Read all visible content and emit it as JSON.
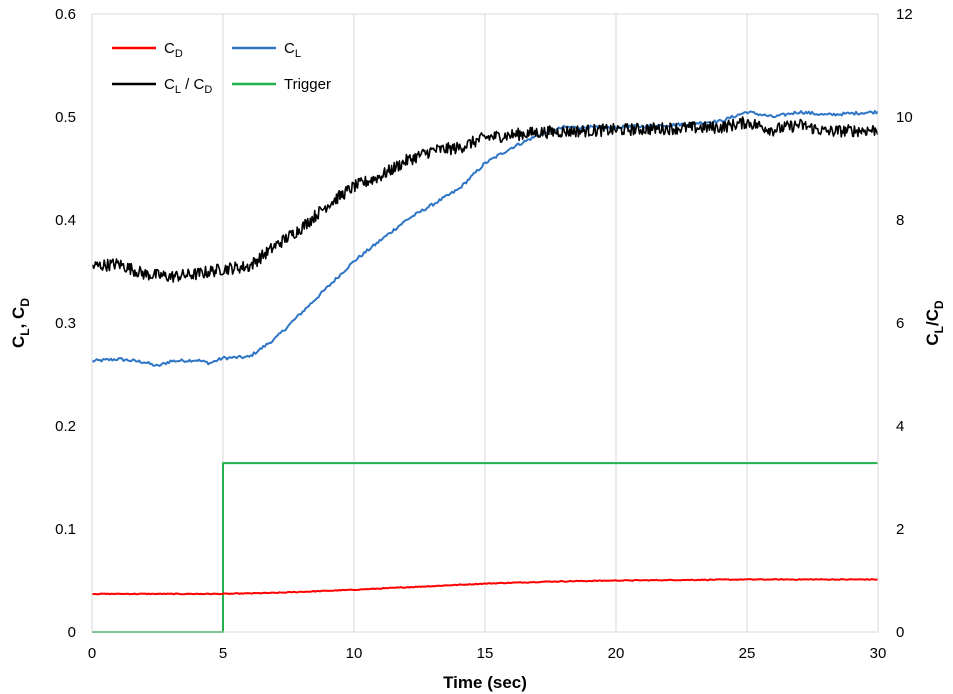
{
  "chart_data": {
    "type": "line",
    "xlabel": "Time (sec)",
    "ylabel_left": {
      "main": "C",
      "sub1": "L",
      "sep": ", C",
      "sub2": "D"
    },
    "ylabel_right": {
      "main": "C",
      "sub1": "L",
      "sep": "/C",
      "sub2": "D"
    },
    "xlim": [
      0,
      30
    ],
    "ylim_left": [
      0,
      0.6
    ],
    "ylim_right": [
      0,
      12
    ],
    "x_ticks": [
      "0",
      "5",
      "10",
      "15",
      "20",
      "25",
      "30"
    ],
    "y_left_ticks": [
      "0",
      "0.1",
      "0.2",
      "0.3",
      "0.4",
      "0.5",
      "0.6"
    ],
    "y_right_ticks": [
      "0",
      "2",
      "4",
      "6",
      "8",
      "10",
      "12"
    ],
    "grid": "vertical",
    "legend_position": "top-left",
    "series": [
      {
        "name": "CD",
        "label_main": "C",
        "label_sub": "D",
        "label_suffix": "",
        "color": "#ff0000",
        "axis": "left",
        "noise": 0.0004,
        "x": [
          0,
          5,
          7,
          10,
          12.5,
          15,
          17.5,
          20,
          25,
          30
        ],
        "values": [
          0.037,
          0.037,
          0.038,
          0.041,
          0.044,
          0.047,
          0.049,
          0.05,
          0.051,
          0.051
        ]
      },
      {
        "name": "CL",
        "label_main": "C",
        "label_sub": "L",
        "label_suffix": "",
        "color": "#2e75c6",
        "axis": "left",
        "noise": 0.0015,
        "x": [
          0,
          1,
          2,
          2.5,
          3,
          4,
          4.5,
          5,
          6,
          7,
          8,
          9,
          10,
          11,
          12,
          13,
          14,
          15,
          16,
          17,
          18,
          20,
          22,
          24,
          25,
          26,
          27,
          28,
          30
        ],
        "values": [
          0.263,
          0.265,
          0.262,
          0.258,
          0.263,
          0.264,
          0.261,
          0.266,
          0.267,
          0.285,
          0.31,
          0.335,
          0.36,
          0.38,
          0.4,
          0.415,
          0.43,
          0.455,
          0.47,
          0.482,
          0.49,
          0.49,
          0.492,
          0.496,
          0.505,
          0.5,
          0.505,
          0.502,
          0.505
        ]
      },
      {
        "name": "CL/CD",
        "label_main": "C",
        "label_sub": "L",
        "label_suffix": " / C",
        "label_sub2": "D",
        "color": "#000000",
        "axis": "right",
        "noise": 0.12,
        "x": [
          0,
          1,
          2,
          3,
          4,
          5,
          6,
          7,
          8,
          9,
          10,
          11,
          12,
          13,
          14,
          15,
          16,
          17,
          18,
          20,
          22,
          24,
          25,
          26,
          27,
          28,
          30
        ],
        "values": [
          7.1,
          7.15,
          6.95,
          6.9,
          6.95,
          7.05,
          7.1,
          7.5,
          7.85,
          8.3,
          8.65,
          8.85,
          9.15,
          9.35,
          9.4,
          9.6,
          9.65,
          9.7,
          9.72,
          9.75,
          9.78,
          9.8,
          9.9,
          9.75,
          9.85,
          9.72,
          9.75
        ]
      },
      {
        "name": "Trigger",
        "label_main": "Trigger",
        "label_sub": "",
        "label_suffix": "",
        "color": "#22b14c",
        "axis": "left",
        "noise": 0,
        "x": [
          0,
          5,
          5,
          30
        ],
        "values": [
          0,
          0,
          0.164,
          0.164
        ]
      }
    ]
  }
}
